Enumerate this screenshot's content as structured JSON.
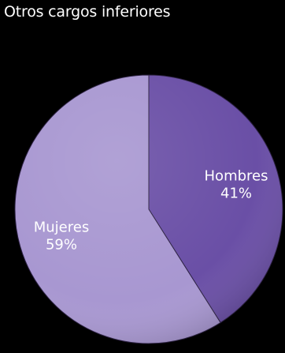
{
  "chart_data": {
    "type": "pie",
    "title": "Otros cargos inferiores",
    "slices": [
      {
        "label": "Hombres",
        "value": 41,
        "value_label": "41%",
        "color": "#6a4fa6"
      },
      {
        "label": "Mujeres",
        "value": 59,
        "value_label": "59%",
        "color": "#a897d1"
      }
    ],
    "start": "12 o'clock",
    "direction": "clockwise",
    "legend": "none",
    "background": "#000000"
  }
}
